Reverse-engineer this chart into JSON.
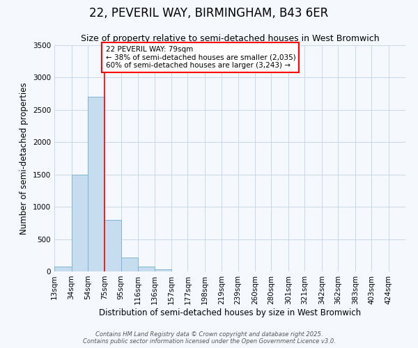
{
  "title": "22, PEVERIL WAY, BIRMINGHAM, B43 6ER",
  "subtitle": "Size of property relative to semi-detached houses in West Bromwich",
  "xlabel": "Distribution of semi-detached houses by size in West Bromwich",
  "ylabel": "Number of semi-detached properties",
  "footnote1": "Contains HM Land Registry data © Crown copyright and database right 2025.",
  "footnote2": "Contains public sector information licensed under the Open Government Licence v3.0.",
  "property_label": "22 PEVERIL WAY: 79sqm",
  "pct_smaller": 38,
  "n_smaller": 2035,
  "pct_larger": 60,
  "n_larger": 3243,
  "bin_labels": [
    "13sqm",
    "34sqm",
    "54sqm",
    "75sqm",
    "95sqm",
    "116sqm",
    "136sqm",
    "157sqm",
    "177sqm",
    "198sqm",
    "219sqm",
    "239sqm",
    "260sqm",
    "280sqm",
    "301sqm",
    "321sqm",
    "342sqm",
    "362sqm",
    "383sqm",
    "403sqm",
    "424sqm"
  ],
  "bin_edges": [
    13,
    34,
    54,
    75,
    95,
    116,
    136,
    157,
    177,
    198,
    219,
    239,
    260,
    280,
    301,
    321,
    342,
    362,
    383,
    403,
    424
  ],
  "bar_values": [
    80,
    1500,
    2700,
    800,
    220,
    80,
    30,
    0,
    0,
    0,
    0,
    0,
    0,
    0,
    0,
    0,
    0,
    0,
    0,
    0
  ],
  "bar_color": "#c6dcef",
  "bar_edge_color": "#7fb3d3",
  "vline_x": 75,
  "vline_color": "red",
  "ylim": [
    0,
    3500
  ],
  "yticks": [
    0,
    500,
    1000,
    1500,
    2000,
    2500,
    3000,
    3500
  ],
  "bg_color": "#f5f8fc",
  "grid_color": "#c8d8e8",
  "annotation_box_color": "red",
  "title_fontsize": 12,
  "subtitle_fontsize": 9,
  "axis_label_fontsize": 8.5,
  "tick_fontsize": 7.5,
  "annotation_fontsize": 7.5
}
